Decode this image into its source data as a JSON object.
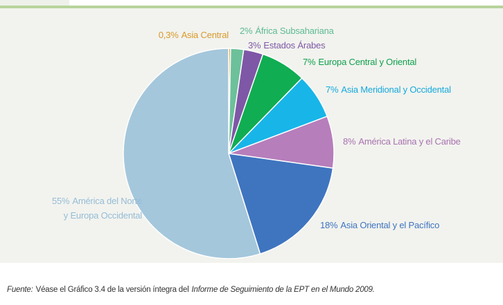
{
  "chart_data": {
    "type": "pie",
    "categories": [
      "Asia Central",
      "África Subsahariana",
      "Estados Árabes",
      "Europa Central y Oriental",
      "Asia Meridional y Occidental",
      "América Latina y el Caribe",
      "Asia Oriental y el Pacífico",
      "América del Norte\ny Europa Occidental"
    ],
    "values": [
      0.3,
      2,
      3,
      7,
      7,
      8,
      18,
      55
    ],
    "value_labels": [
      "0,3%",
      "2%",
      "3%",
      "7%",
      "7%",
      "8%",
      "18%",
      "55%"
    ],
    "colors": [
      "#e3a23a",
      "#6cc09a",
      "#7e58a6",
      "#10ad52",
      "#17b5e8",
      "#b67fbc",
      "#3f74bf",
      "#a5c7dc"
    ],
    "label_colors": [
      "#d9992a",
      "#5dba92",
      "#7e58a6",
      "#10a04c",
      "#14a9dc",
      "#a872b0",
      "#3f74bf",
      "#95bcd6"
    ]
  },
  "note": {
    "label": "Fuente:",
    "text": "Véase el Gráfico 3.4 de la versión íntegra del",
    "source": "Informe de Seguimiento de la EPT en el Mundo 2009."
  }
}
